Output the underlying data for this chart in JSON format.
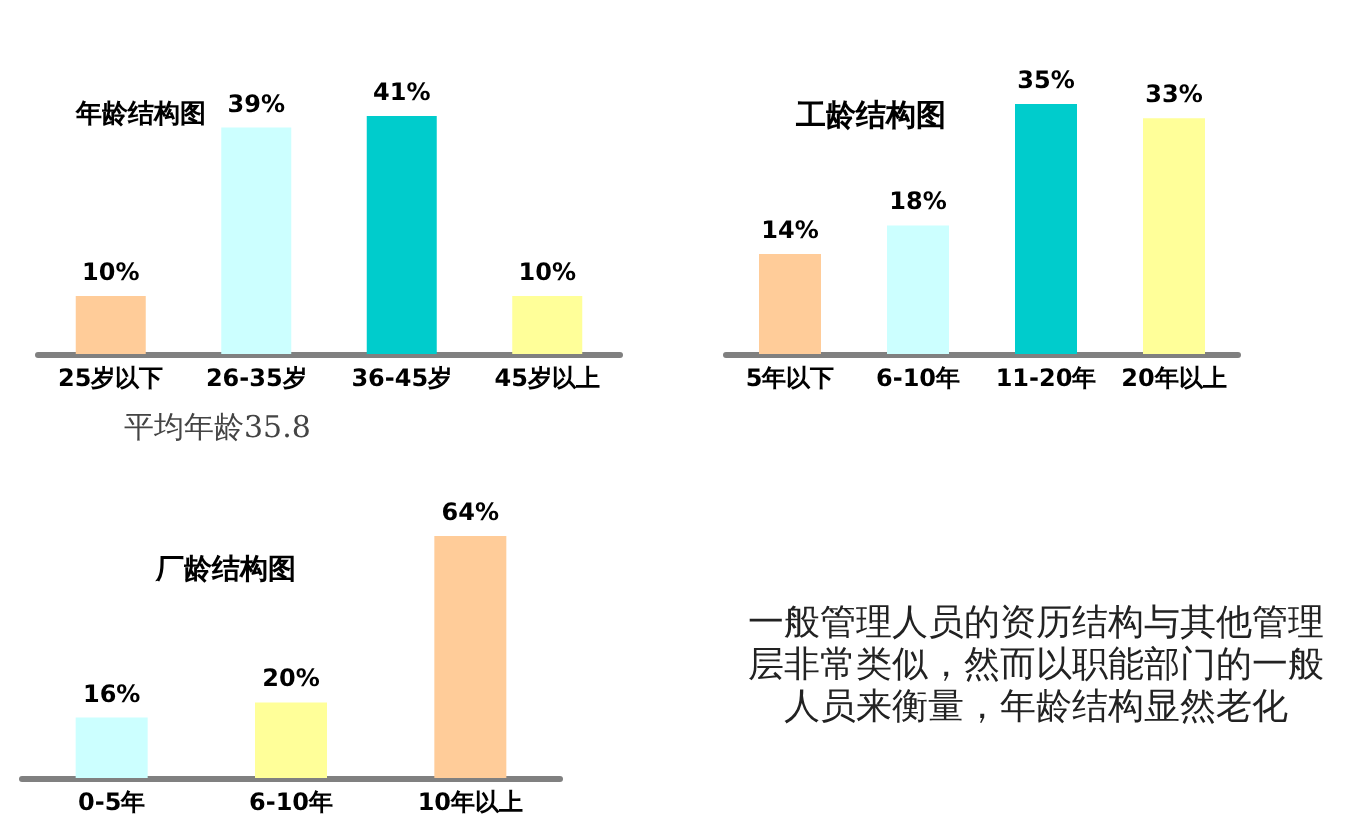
{
  "chart_data": [
    {
      "type": "bar",
      "title": "年龄结构图",
      "categories": [
        "25岁以下",
        "26-35岁",
        "36-45岁",
        "45岁以上"
      ],
      "values": [
        10,
        39,
        41,
        10
      ],
      "colors": [
        "#ffcc99",
        "#ccffff",
        "#00cccc",
        "#ffff99"
      ],
      "value_labels": [
        "10%",
        "39%",
        "41%",
        "10%"
      ],
      "annotations": [
        "平均年龄35.8"
      ]
    },
    {
      "type": "bar",
      "title": "工龄结构图",
      "categories": [
        "5年以下",
        "6-10年",
        "11-20年",
        "20年以上"
      ],
      "values": [
        14,
        18,
        35,
        33
      ],
      "colors": [
        "#ffcc99",
        "#ccffff",
        "#00cccc",
        "#ffff99"
      ],
      "value_labels": [
        "14%",
        "18%",
        "35%",
        "33%"
      ]
    },
    {
      "type": "bar",
      "title": "厂龄结构图",
      "categories": [
        "0-5年",
        "6-10年",
        "10年以上"
      ],
      "values": [
        16,
        20,
        64
      ],
      "colors": [
        "#ccffff",
        "#ffff99",
        "#ffcc99"
      ],
      "value_labels": [
        "16%",
        "20%",
        "64%"
      ]
    },
    {
      "type": "other",
      "annotations": [
        "一般管理人员的资历结构与其他管理层非常类似，然而以职能部门的一般人员来衡量，年龄结构显然老化"
      ]
    }
  ]
}
